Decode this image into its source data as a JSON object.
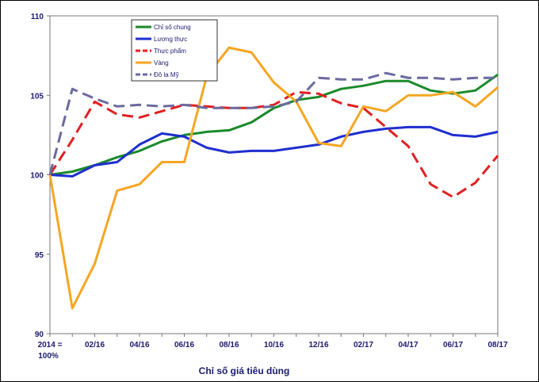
{
  "chart_data": {
    "type": "line",
    "title": "",
    "xlabel": "Chỉ số giá tiêu dùng",
    "ylabel": "",
    "ylim": [
      90,
      110
    ],
    "yticks": [
      "90",
      "95",
      "100",
      "105",
      "110"
    ],
    "x_tick_labels": [
      "2014 = 100%",
      "02/16",
      "04/16",
      "06/16",
      "08/16",
      "10/16",
      "12/16",
      "02/17",
      "04/17",
      "06/17",
      "08/17"
    ],
    "grid": false,
    "legend_position": "top-left-inside",
    "series": [
      {
        "name": "Chỉ số chung",
        "color": "#1a8a2a",
        "dash": "solid",
        "values": [
          100.0,
          100.2,
          100.6,
          101.1,
          101.5,
          102.1,
          102.5,
          102.7,
          102.8,
          103.3,
          104.2,
          104.7,
          104.9,
          105.4,
          105.6,
          105.9,
          105.9,
          105.3,
          105.1,
          105.3,
          106.3
        ]
      },
      {
        "name": "Lương thực",
        "color": "#1f2fcf",
        "dash": "solid",
        "values": [
          100.0,
          99.9,
          100.6,
          100.8,
          101.9,
          102.6,
          102.4,
          101.7,
          101.4,
          101.5,
          101.5,
          101.7,
          101.9,
          102.4,
          102.7,
          102.9,
          103.0,
          103.0,
          102.5,
          102.4,
          102.7
        ]
      },
      {
        "name": "Thực phẩm",
        "color": "#e02020",
        "dash": "dashed",
        "values": [
          100.0,
          102.2,
          104.6,
          103.8,
          103.6,
          104.0,
          104.4,
          104.3,
          104.2,
          104.2,
          104.4,
          105.2,
          105.1,
          104.5,
          104.2,
          103.0,
          101.8,
          99.4,
          98.6,
          99.5,
          101.2
        ]
      },
      {
        "name": "Vàng",
        "color": "#f5a623",
        "dash": "solid",
        "values": [
          100.0,
          91.6,
          94.4,
          99.0,
          99.4,
          100.8,
          100.8,
          106.2,
          108.0,
          107.7,
          105.8,
          104.6,
          102.0,
          101.8,
          104.3,
          104.0,
          105.0,
          105.0,
          105.2,
          104.3,
          105.5
        ]
      },
      {
        "name": "Đô la Mỹ",
        "color": "#6a6a9e",
        "dash": "dashed",
        "values": [
          100.0,
          105.4,
          104.8,
          104.3,
          104.4,
          104.3,
          104.4,
          104.2,
          104.2,
          104.2,
          104.3,
          104.6,
          106.1,
          106.0,
          106.0,
          106.4,
          106.1,
          106.1,
          106.0,
          106.1,
          106.1
        ]
      }
    ]
  }
}
